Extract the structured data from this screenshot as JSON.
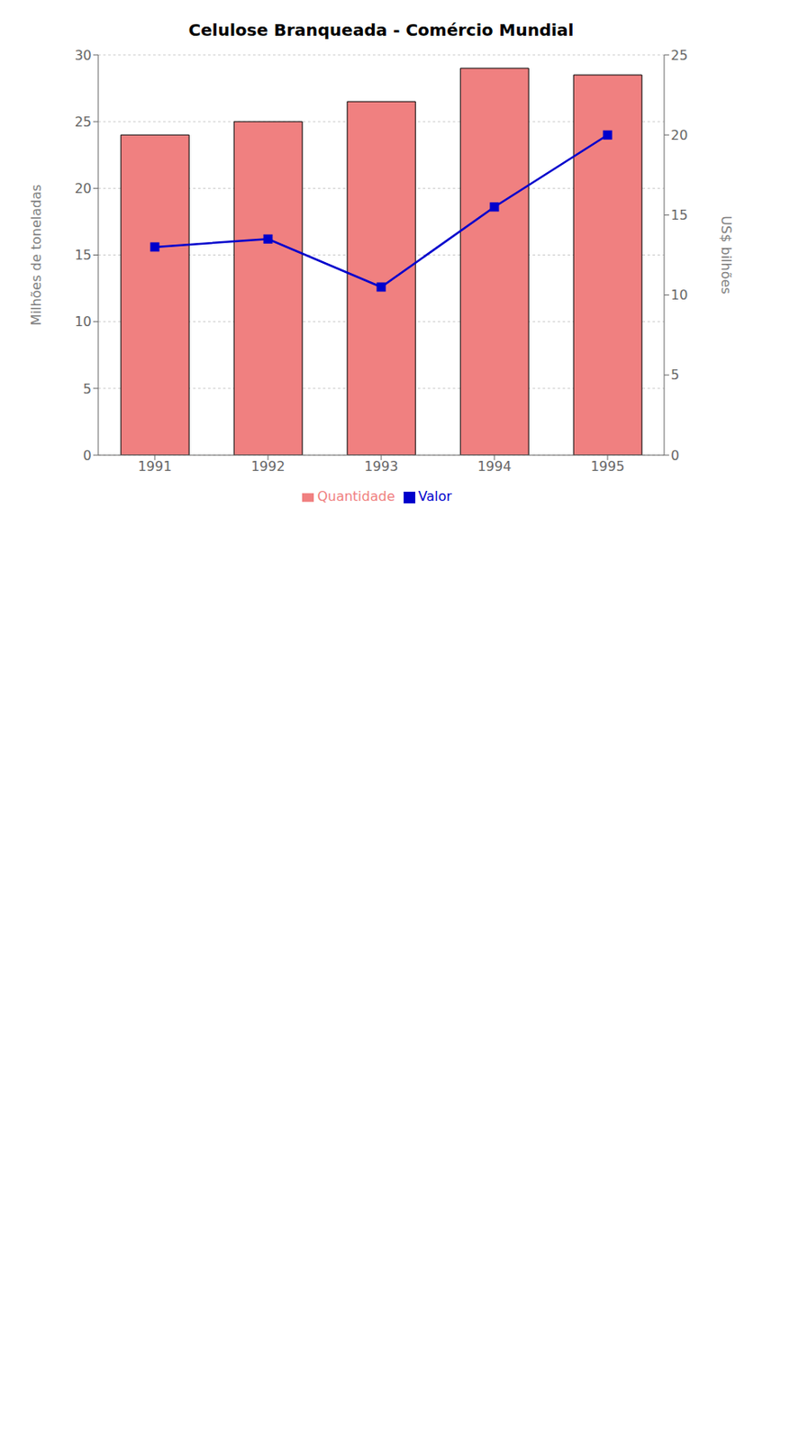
{
  "chart_data": {
    "type": "bar",
    "title": "Celulose Branqueada - Comércio Mundial",
    "categories": [
      "1991",
      "1992",
      "1993",
      "1994",
      "1995"
    ],
    "series": [
      {
        "name": "Quantidade",
        "type": "bar",
        "color": "#F08080",
        "values": [
          24,
          25,
          26.5,
          29,
          28.5
        ]
      },
      {
        "name": "Valor",
        "type": "line",
        "color": "#0000CC",
        "marker": "square",
        "axis": "y2",
        "values": [
          13,
          13.5,
          10.5,
          15.5,
          20
        ]
      }
    ],
    "ylabel": "Milhões de toneladas",
    "y2label": "US$ bilhões",
    "ylim": [
      0,
      30
    ],
    "yticks": [
      0,
      5,
      10,
      15,
      20,
      25,
      30
    ],
    "y2lim": [
      0,
      25
    ],
    "y2ticks": [
      0,
      5,
      10,
      15,
      20,
      25
    ],
    "grid": true,
    "legend": "bottom"
  }
}
